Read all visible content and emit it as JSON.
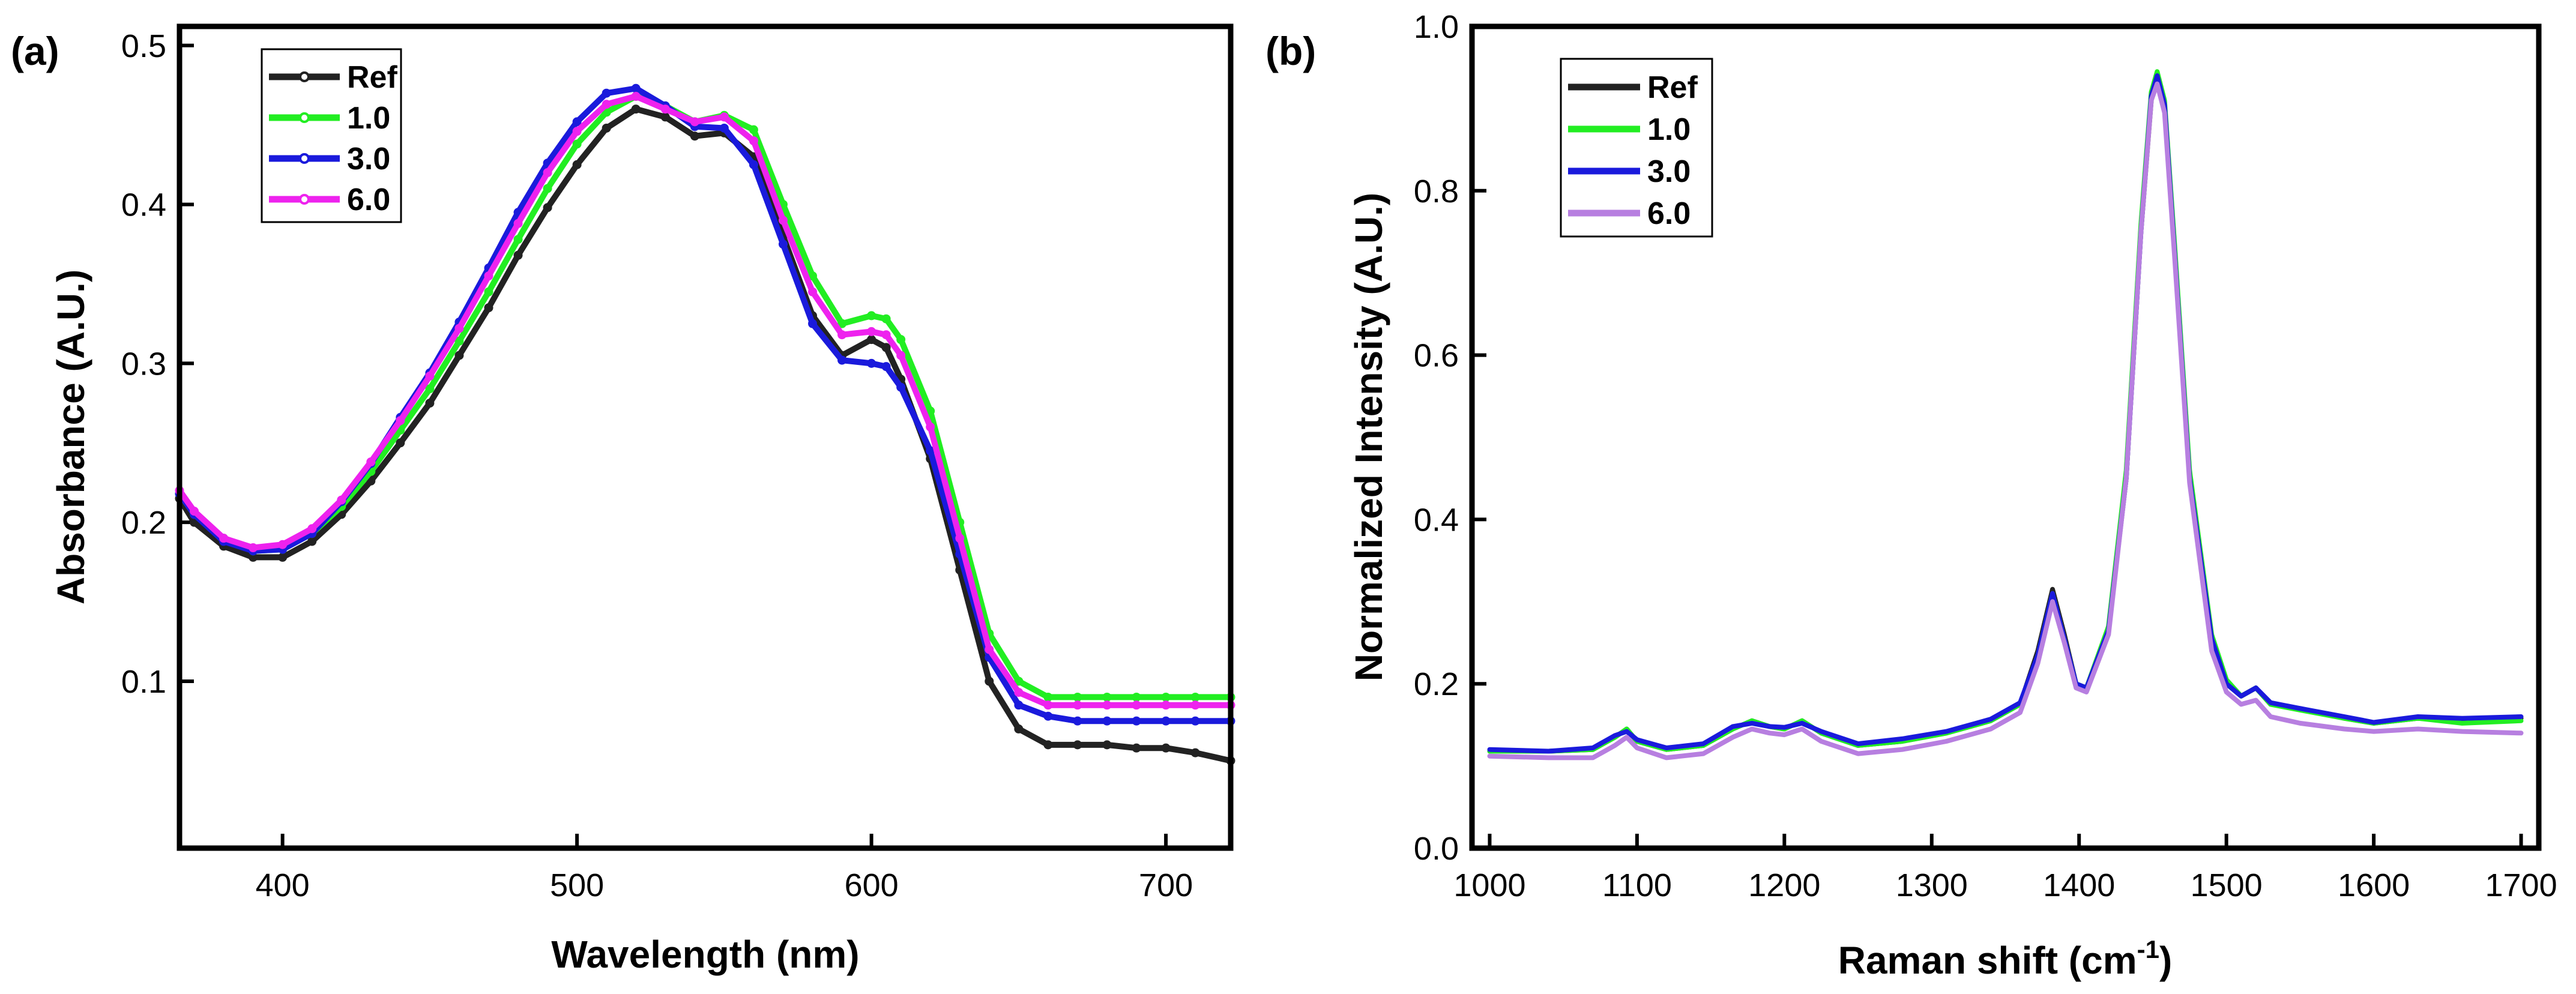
{
  "panel_a": {
    "label": "(a)"
  },
  "panel_b": {
    "label": "(b)"
  },
  "colors": {
    "ref": "#222222",
    "c1": "#22ee22",
    "c3": "#1a1adc",
    "c6_a": "#ee22ee",
    "c6_b": "#b77fe0"
  },
  "chart_data": [
    {
      "type": "line",
      "xlabel": "Wavelength (nm)",
      "ylabel": "Absorbance (A.U.)",
      "xlim": [
        365,
        722
      ],
      "ylim": [
        -0.005,
        0.512
      ],
      "xticks": [
        400,
        500,
        600,
        700
      ],
      "xtick_labels": [
        "400",
        "500",
        "600",
        "700"
      ],
      "yticks": [
        0.1,
        0.2,
        0.3,
        0.4,
        0.5
      ],
      "ytick_labels": [
        "0.1",
        "0.2",
        "0.3",
        "0.4",
        "0.5"
      ],
      "legend_position": "top-left",
      "legend": [
        "Ref",
        "1.0",
        "3.0",
        "6.0"
      ],
      "series": [
        {
          "name": "Ref",
          "color_key": "ref",
          "x": [
            365,
            370,
            380,
            390,
            400,
            410,
            420,
            430,
            440,
            450,
            460,
            470,
            480,
            490,
            500,
            510,
            520,
            530,
            540,
            550,
            560,
            570,
            580,
            590,
            600,
            605,
            610,
            620,
            630,
            640,
            650,
            660,
            670,
            680,
            690,
            700,
            710,
            722
          ],
          "values": [
            0.215,
            0.2,
            0.185,
            0.178,
            0.178,
            0.188,
            0.205,
            0.226,
            0.25,
            0.275,
            0.305,
            0.335,
            0.368,
            0.398,
            0.425,
            0.448,
            0.46,
            0.455,
            0.443,
            0.445,
            0.43,
            0.38,
            0.33,
            0.305,
            0.315,
            0.31,
            0.29,
            0.24,
            0.17,
            0.1,
            0.07,
            0.06,
            0.06,
            0.06,
            0.058,
            0.058,
            0.055,
            0.05
          ]
        },
        {
          "name": "1.0",
          "color_key": "c1",
          "x": [
            365,
            370,
            380,
            390,
            400,
            410,
            420,
            430,
            440,
            450,
            460,
            470,
            480,
            490,
            500,
            510,
            520,
            530,
            540,
            550,
            560,
            570,
            580,
            590,
            600,
            605,
            610,
            620,
            630,
            640,
            650,
            660,
            670,
            680,
            690,
            700,
            710,
            722
          ],
          "values": [
            0.218,
            0.205,
            0.19,
            0.182,
            0.183,
            0.193,
            0.21,
            0.232,
            0.258,
            0.284,
            0.314,
            0.345,
            0.378,
            0.41,
            0.438,
            0.458,
            0.468,
            0.462,
            0.452,
            0.456,
            0.447,
            0.4,
            0.355,
            0.325,
            0.33,
            0.328,
            0.315,
            0.27,
            0.2,
            0.13,
            0.1,
            0.09,
            0.09,
            0.09,
            0.09,
            0.09,
            0.09,
            0.09
          ]
        },
        {
          "name": "3.0",
          "color_key": "c3",
          "x": [
            365,
            370,
            380,
            390,
            400,
            410,
            420,
            430,
            440,
            450,
            460,
            470,
            480,
            490,
            500,
            510,
            520,
            530,
            540,
            550,
            560,
            570,
            580,
            590,
            600,
            605,
            610,
            620,
            630,
            640,
            650,
            660,
            670,
            680,
            690,
            700,
            710,
            722
          ],
          "values": [
            0.218,
            0.205,
            0.188,
            0.182,
            0.183,
            0.193,
            0.213,
            0.237,
            0.266,
            0.294,
            0.326,
            0.36,
            0.395,
            0.426,
            0.452,
            0.47,
            0.473,
            0.462,
            0.449,
            0.448,
            0.425,
            0.375,
            0.325,
            0.302,
            0.3,
            0.298,
            0.285,
            0.245,
            0.18,
            0.115,
            0.085,
            0.078,
            0.075,
            0.075,
            0.075,
            0.075,
            0.075,
            0.075
          ]
        },
        {
          "name": "6.0",
          "color_key": "c6_a",
          "x": [
            365,
            370,
            380,
            390,
            400,
            410,
            420,
            430,
            440,
            450,
            460,
            470,
            480,
            490,
            500,
            510,
            520,
            530,
            540,
            550,
            560,
            570,
            580,
            590,
            600,
            605,
            610,
            620,
            630,
            640,
            650,
            660,
            670,
            680,
            690,
            700,
            710,
            722
          ],
          "values": [
            0.22,
            0.207,
            0.19,
            0.184,
            0.186,
            0.196,
            0.214,
            0.238,
            0.264,
            0.292,
            0.322,
            0.355,
            0.388,
            0.42,
            0.446,
            0.463,
            0.468,
            0.46,
            0.452,
            0.455,
            0.44,
            0.39,
            0.345,
            0.318,
            0.32,
            0.318,
            0.305,
            0.26,
            0.19,
            0.12,
            0.093,
            0.085,
            0.085,
            0.085,
            0.085,
            0.085,
            0.085,
            0.085
          ]
        }
      ]
    },
    {
      "type": "line",
      "xlabel": "Raman shift (cm-1)",
      "xlabel_main": "Raman shift (cm",
      "xlabel_sup": "-1",
      "xlabel_end": ")",
      "ylabel": "Normalized Intensity (A.U.)",
      "xlim": [
        988,
        1712
      ],
      "ylim": [
        0,
        1.0
      ],
      "xticks": [
        1000,
        1100,
        1200,
        1300,
        1400,
        1500,
        1600,
        1700
      ],
      "xtick_labels": [
        "1000",
        "1100",
        "1200",
        "1300",
        "1400",
        "1500",
        "1600",
        "1700"
      ],
      "yticks": [
        0.0,
        0.2,
        0.4,
        0.6,
        0.8,
        1.0
      ],
      "ytick_labels": [
        "0.0",
        "0.2",
        "0.4",
        "0.6",
        "0.8",
        "1.0"
      ],
      "legend_position": "top-left",
      "legend": [
        "Ref",
        "1.0",
        "3.0",
        "6.0"
      ],
      "series": [
        {
          "name": "Ref",
          "color_key": "ref",
          "x": [
            1000,
            1040,
            1070,
            1085,
            1093,
            1100,
            1120,
            1145,
            1165,
            1178,
            1190,
            1200,
            1212,
            1225,
            1250,
            1280,
            1310,
            1340,
            1360,
            1372,
            1382,
            1390,
            1398,
            1405,
            1420,
            1432,
            1442,
            1449,
            1453,
            1458,
            1465,
            1475,
            1490,
            1500,
            1510,
            1520,
            1530,
            1550,
            1580,
            1600,
            1630,
            1660,
            1700
          ],
          "values": [
            0.118,
            0.118,
            0.12,
            0.135,
            0.145,
            0.13,
            0.12,
            0.125,
            0.145,
            0.155,
            0.148,
            0.145,
            0.155,
            0.14,
            0.125,
            0.13,
            0.14,
            0.155,
            0.175,
            0.24,
            0.315,
            0.26,
            0.2,
            0.195,
            0.265,
            0.45,
            0.75,
            0.91,
            0.935,
            0.9,
            0.72,
            0.45,
            0.25,
            0.2,
            0.185,
            0.195,
            0.175,
            0.17,
            0.158,
            0.152,
            0.158,
            0.155,
            0.158
          ]
        },
        {
          "name": "1.0",
          "color_key": "c1",
          "x": [
            1000,
            1040,
            1070,
            1085,
            1093,
            1100,
            1120,
            1145,
            1165,
            1178,
            1190,
            1200,
            1212,
            1225,
            1250,
            1280,
            1310,
            1340,
            1360,
            1372,
            1382,
            1390,
            1398,
            1405,
            1420,
            1432,
            1442,
            1449,
            1453,
            1458,
            1465,
            1475,
            1490,
            1500,
            1510,
            1520,
            1530,
            1550,
            1580,
            1600,
            1630,
            1660,
            1700
          ],
          "values": [
            0.118,
            0.118,
            0.12,
            0.135,
            0.145,
            0.13,
            0.12,
            0.125,
            0.145,
            0.155,
            0.148,
            0.145,
            0.155,
            0.14,
            0.125,
            0.13,
            0.14,
            0.155,
            0.175,
            0.235,
            0.31,
            0.255,
            0.2,
            0.195,
            0.27,
            0.46,
            0.76,
            0.92,
            0.945,
            0.91,
            0.73,
            0.46,
            0.26,
            0.205,
            0.185,
            0.195,
            0.175,
            0.168,
            0.158,
            0.152,
            0.158,
            0.152,
            0.155
          ]
        },
        {
          "name": "3.0",
          "color_key": "c3",
          "x": [
            1000,
            1040,
            1070,
            1085,
            1093,
            1100,
            1120,
            1145,
            1165,
            1178,
            1190,
            1200,
            1212,
            1225,
            1250,
            1280,
            1310,
            1340,
            1360,
            1372,
            1382,
            1390,
            1398,
            1405,
            1420,
            1432,
            1442,
            1449,
            1453,
            1458,
            1465,
            1475,
            1490,
            1500,
            1510,
            1520,
            1530,
            1550,
            1580,
            1600,
            1630,
            1660,
            1700
          ],
          "values": [
            0.12,
            0.118,
            0.122,
            0.137,
            0.142,
            0.132,
            0.122,
            0.127,
            0.148,
            0.152,
            0.148,
            0.147,
            0.152,
            0.142,
            0.127,
            0.133,
            0.142,
            0.157,
            0.177,
            0.235,
            0.31,
            0.255,
            0.2,
            0.195,
            0.265,
            0.45,
            0.75,
            0.915,
            0.94,
            0.905,
            0.72,
            0.45,
            0.255,
            0.2,
            0.185,
            0.195,
            0.177,
            0.17,
            0.16,
            0.153,
            0.16,
            0.158,
            0.16
          ]
        },
        {
          "name": "6.0",
          "color_key": "c6_b",
          "x": [
            1000,
            1040,
            1070,
            1085,
            1093,
            1100,
            1120,
            1145,
            1165,
            1178,
            1190,
            1200,
            1212,
            1225,
            1250,
            1280,
            1310,
            1340,
            1360,
            1372,
            1382,
            1390,
            1398,
            1405,
            1420,
            1432,
            1442,
            1449,
            1453,
            1458,
            1465,
            1475,
            1490,
            1500,
            1510,
            1520,
            1530,
            1550,
            1580,
            1600,
            1630,
            1660,
            1700
          ],
          "values": [
            0.112,
            0.11,
            0.11,
            0.125,
            0.135,
            0.122,
            0.11,
            0.115,
            0.135,
            0.145,
            0.14,
            0.138,
            0.145,
            0.13,
            0.115,
            0.12,
            0.13,
            0.145,
            0.165,
            0.225,
            0.3,
            0.25,
            0.195,
            0.19,
            0.26,
            0.45,
            0.75,
            0.91,
            0.93,
            0.895,
            0.715,
            0.445,
            0.24,
            0.19,
            0.175,
            0.18,
            0.16,
            0.152,
            0.145,
            0.142,
            0.145,
            0.142,
            0.14
          ]
        }
      ]
    }
  ]
}
